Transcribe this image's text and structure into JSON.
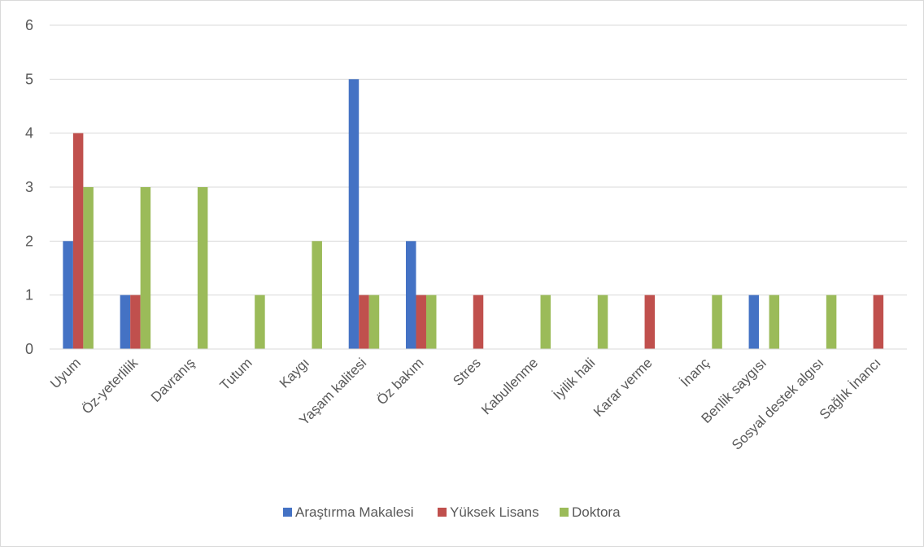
{
  "chart_data": {
    "type": "bar",
    "title": "",
    "xlabel": "",
    "ylabel": "",
    "ylim": [
      0,
      6
    ],
    "yticks": [
      0,
      1,
      2,
      3,
      4,
      5,
      6
    ],
    "grid": true,
    "legend_position": "bottom",
    "categories": [
      "Uyum",
      "Öz-yeterlilik",
      "Davranış",
      "Tutum",
      "Kaygı",
      "Yaşam kalitesi",
      "Öz bakım",
      "Stres",
      "Kabullenme",
      "İyilik hali",
      "Karar verme",
      "İnanç",
      "Benlik saygısı",
      "Sosyal destek algısı",
      "Sağlık İnancı"
    ],
    "series": [
      {
        "name": "Araştırma Makalesi",
        "color": "#4472c4",
        "values": [
          2,
          1,
          0,
          0,
          0,
          5,
          2,
          0,
          0,
          0,
          0,
          0,
          1,
          0,
          0
        ]
      },
      {
        "name": "Yüksek Lisans",
        "color": "#c0504d",
        "values": [
          4,
          1,
          0,
          0,
          0,
          1,
          1,
          1,
          0,
          0,
          1,
          0,
          0,
          0,
          1
        ]
      },
      {
        "name": "Doktora",
        "color": "#9bbb59",
        "values": [
          3,
          3,
          3,
          1,
          2,
          1,
          1,
          0,
          1,
          1,
          0,
          1,
          1,
          1,
          0
        ]
      }
    ]
  }
}
